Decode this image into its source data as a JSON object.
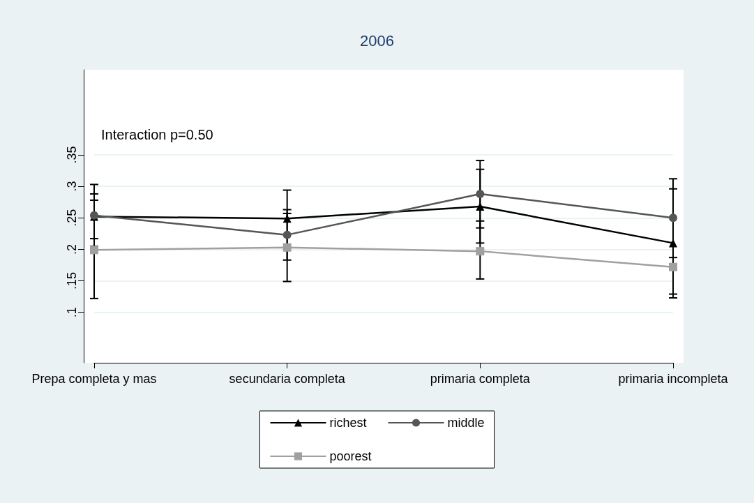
{
  "chart_data": {
    "type": "line",
    "title": "2006",
    "annotations": [
      "Interaction p=0.50"
    ],
    "categories": [
      "Prepa completa y mas",
      "secundaria completa",
      "primaria completa",
      "primaria incompleta"
    ],
    "series": [
      {
        "name": "richest",
        "color": "#000000",
        "marker": "triangle",
        "values": [
          0.252,
          0.249,
          0.268,
          0.21
        ],
        "errors": [
          [
            0.205,
            0.303
          ],
          [
            0.249,
            0.294
          ],
          [
            0.21,
            0.327
          ],
          [
            0.123,
            0.296
          ]
        ]
      },
      {
        "name": "middle",
        "color": "#555555",
        "marker": "circle",
        "values": [
          0.254,
          0.223,
          0.288,
          0.25
        ],
        "errors": [
          [
            0.217,
            0.288
          ],
          [
            0.183,
            0.263
          ],
          [
            0.234,
            0.341
          ],
          [
            0.187,
            0.312
          ]
        ]
      },
      {
        "name": "poorest",
        "color": "#a0a0a0",
        "marker": "square",
        "values": [
          0.199,
          0.203,
          0.197,
          0.172
        ],
        "errors": [
          [
            0.122,
            0.278
          ],
          [
            0.149,
            0.257
          ],
          [
            0.153,
            0.245
          ],
          [
            0.129,
            0.172
          ]
        ]
      }
    ],
    "ylim": [
      0.02,
      0.485
    ],
    "yticks": [
      {
        "value": 0.1,
        "label": ".1"
      },
      {
        "value": 0.15,
        "label": ".15"
      },
      {
        "value": 0.2,
        "label": ".2"
      },
      {
        "value": 0.25,
        "label": ".25"
      },
      {
        "value": 0.3,
        "label": ".3"
      },
      {
        "value": 0.35,
        "label": ".35"
      }
    ],
    "grid": "y",
    "legend": "bottom",
    "line_style": "solid"
  }
}
